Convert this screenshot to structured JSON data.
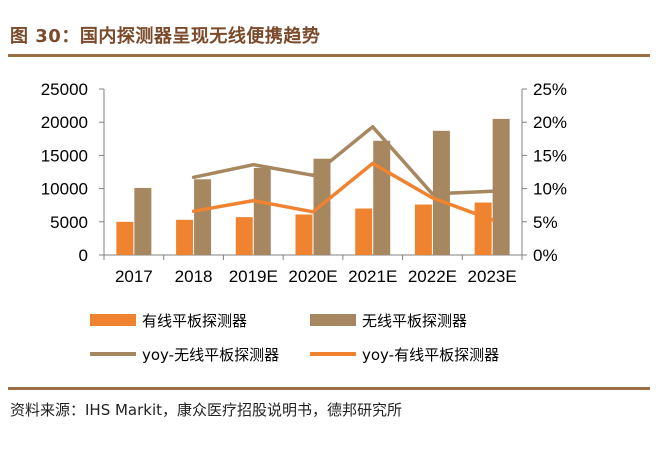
{
  "header": {
    "title": "图 30：国内探测器呈现无线便携趋势"
  },
  "footer": {
    "source": "资料来源：IHS Markit，康众医疗招股说明书，德邦研究所"
  },
  "colors": {
    "wired": "#f08330",
    "wireless": "#a6875f",
    "rule": "#9c6e46",
    "title": "#7a4a2a"
  },
  "chart_data": {
    "type": "bar",
    "title": "",
    "categories": [
      "2017",
      "2018",
      "2019E",
      "2020E",
      "2021E",
      "2022E",
      "2023E"
    ],
    "series": [
      {
        "name": "有线平板探测器",
        "kind": "bar",
        "axis": "left",
        "values": [
          5000,
          5300,
          5700,
          6100,
          7000,
          7600,
          7900
        ]
      },
      {
        "name": "无线平板探测器",
        "kind": "bar",
        "axis": "left",
        "values": [
          10100,
          11400,
          13100,
          14500,
          17200,
          18700,
          20500
        ]
      },
      {
        "name": "yoy-无线平板探测器",
        "kind": "line",
        "axis": "right",
        "values": [
          null,
          11.7,
          13.6,
          12.0,
          19.3,
          9.2,
          9.6
        ]
      },
      {
        "name": "yoy-有线平板探测器",
        "kind": "line",
        "axis": "right",
        "values": [
          null,
          6.6,
          8.2,
          6.5,
          13.8,
          8.6,
          5.3
        ]
      }
    ],
    "y_left": {
      "min": 0,
      "max": 25000,
      "ticks": [
        "0",
        "5000",
        "10000",
        "15000",
        "20000",
        "25000"
      ]
    },
    "y_right": {
      "min": 0,
      "max": 25,
      "ticks": [
        "0%",
        "5%",
        "10%",
        "15%",
        "20%",
        "25%"
      ]
    },
    "legend_position": "bottom",
    "grid": false
  }
}
